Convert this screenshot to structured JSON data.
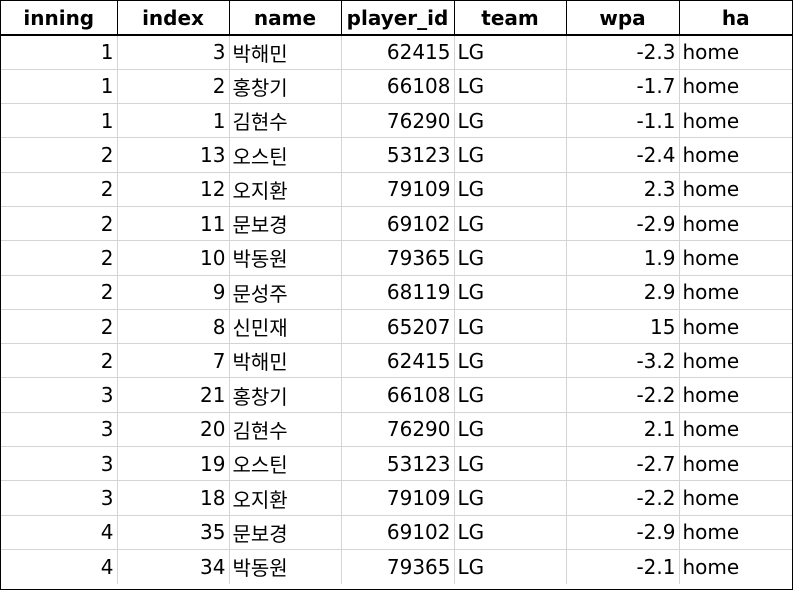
{
  "columns": [
    "inning",
    "index",
    "name",
    "player_id",
    "team",
    "wpa",
    "ha"
  ],
  "rows": [
    [
      "1",
      "3",
      "박해민",
      "62415",
      "LG",
      "-2.3",
      "home"
    ],
    [
      "1",
      "2",
      "홍창기",
      "66108",
      "LG",
      "-1.7",
      "home"
    ],
    [
      "1",
      "1",
      "김현수",
      "76290",
      "LG",
      "-1.1",
      "home"
    ],
    [
      "2",
      "13",
      "오스틴",
      "53123",
      "LG",
      "-2.4",
      "home"
    ],
    [
      "2",
      "12",
      "오지환",
      "79109",
      "LG",
      "2.3",
      "home"
    ],
    [
      "2",
      "11",
      "문보경",
      "69102",
      "LG",
      "-2.9",
      "home"
    ],
    [
      "2",
      "10",
      "박동원",
      "79365",
      "LG",
      "1.9",
      "home"
    ],
    [
      "2",
      "9",
      "문성주",
      "68119",
      "LG",
      "2.9",
      "home"
    ],
    [
      "2",
      "8",
      "신민재",
      "65207",
      "LG",
      "15",
      "home"
    ],
    [
      "2",
      "7",
      "박해민",
      "62415",
      "LG",
      "-3.2",
      "home"
    ],
    [
      "3",
      "21",
      "홍창기",
      "66108",
      "LG",
      "-2.2",
      "home"
    ],
    [
      "3",
      "20",
      "김현수",
      "76290",
      "LG",
      "2.1",
      "home"
    ],
    [
      "3",
      "19",
      "오스틴",
      "53123",
      "LG",
      "-2.7",
      "home"
    ],
    [
      "3",
      "18",
      "오지환",
      "79109",
      "LG",
      "-2.2",
      "home"
    ],
    [
      "4",
      "35",
      "문보경",
      "69102",
      "LG",
      "-2.9",
      "home"
    ],
    [
      "4",
      "34",
      "박동원",
      "79365",
      "LG",
      "-2.1",
      "home"
    ]
  ]
}
